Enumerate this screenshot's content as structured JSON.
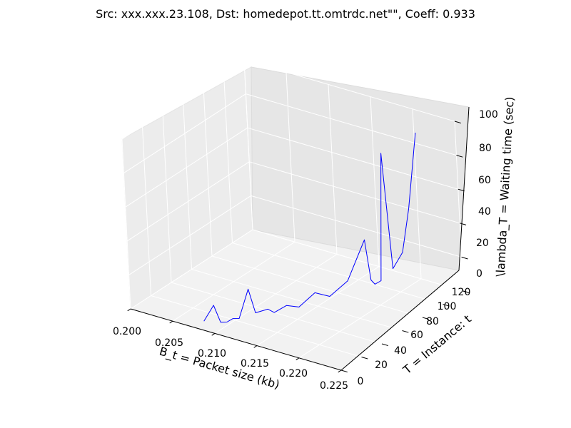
{
  "chart_data": {
    "type": "line",
    "projection": "3d",
    "title": "Src: xxx.xxx.23.108, Dst: homedepot.tt.omtrdc.net\"\", Coeff: 0.933",
    "xlabel": "B_t = Packet size (kb)",
    "ylabel": "T = Instance: t",
    "zlabel": "\\lambda_T = Waiting time (sec)",
    "xlim": [
      0.2,
      0.225
    ],
    "ylim": [
      0,
      120
    ],
    "zlim": [
      0,
      100
    ],
    "x_ticks": [
      "0.200",
      "0.205",
      "0.210",
      "0.215",
      "0.220",
      "0.225"
    ],
    "y_ticks": [
      "0",
      "20",
      "40",
      "60",
      "80",
      "100",
      "120"
    ],
    "z_ticks": [
      "0",
      "20",
      "40",
      "60",
      "80",
      "100"
    ],
    "grid": true,
    "series": [
      {
        "color": "#0000ff",
        "points": [
          [
            0.208,
            6,
            2
          ],
          [
            0.209,
            8,
            12
          ],
          [
            0.2095,
            10,
            2
          ],
          [
            0.21,
            12,
            2
          ],
          [
            0.2105,
            14,
            4
          ],
          [
            0.211,
            16,
            4
          ],
          [
            0.212,
            18,
            22
          ],
          [
            0.2125,
            20,
            8
          ],
          [
            0.2135,
            24,
            10
          ],
          [
            0.214,
            26,
            8
          ],
          [
            0.215,
            30,
            12
          ],
          [
            0.216,
            34,
            11
          ],
          [
            0.2175,
            38,
            20
          ],
          [
            0.2185,
            44,
            17
          ],
          [
            0.22,
            50,
            26
          ],
          [
            0.2215,
            56,
            50
          ],
          [
            0.2218,
            58,
            26
          ],
          [
            0.222,
            60,
            23
          ],
          [
            0.2225,
            62,
            25
          ],
          [
            0.223,
            64,
            100
          ],
          [
            0.2235,
            66,
            32
          ],
          [
            0.224,
            72,
            40
          ],
          [
            0.2245,
            76,
            65
          ],
          [
            0.225,
            82,
            108
          ]
        ]
      }
    ]
  }
}
